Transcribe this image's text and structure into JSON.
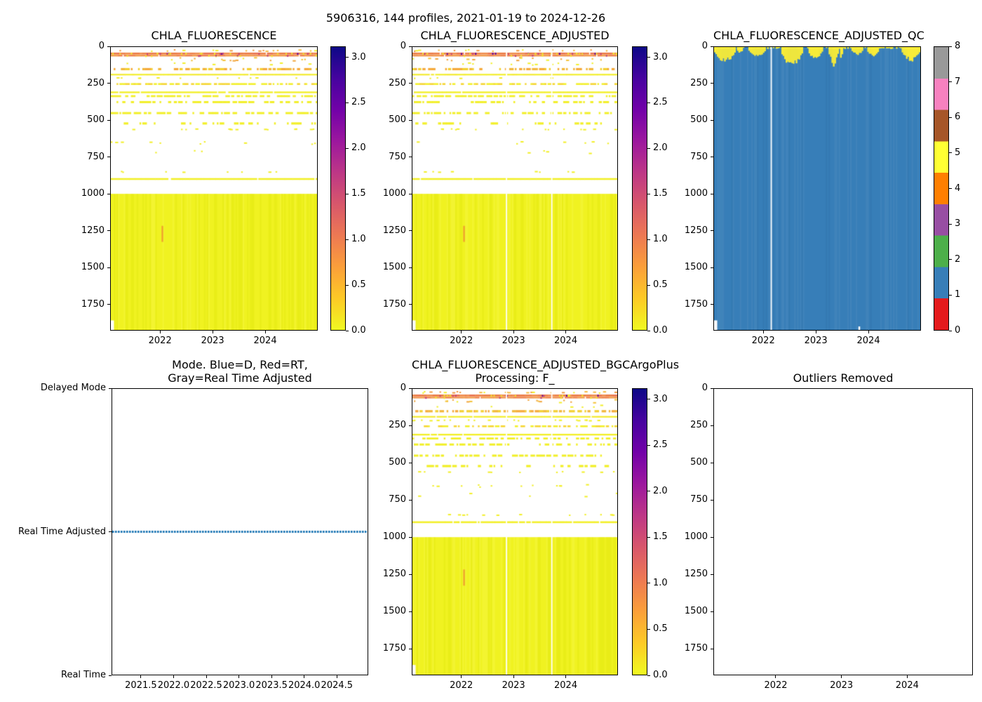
{
  "figure": {
    "suptitle": "5906316, 144 profiles, 2021-01-19 to 2024-12-26",
    "background": "#ffffff"
  },
  "palette": {
    "plasma_r_stops": [
      "#0d0887",
      "#46039f",
      "#7201a8",
      "#9c179e",
      "#bd3786",
      "#d8576b",
      "#ed7953",
      "#fb9f3a",
      "#fdca26",
      "#f0f921"
    ],
    "set1_bottom_to_top": [
      "#e41a1c",
      "#377eb8",
      "#4daf4a",
      "#984ea3",
      "#ff7f00",
      "#ffff33",
      "#a65628",
      "#f781bf",
      "#999999"
    ],
    "mode_line_blue": "#1f77b4",
    "qc_blue": "#377eb8",
    "qc_yellow": "#f8ec38",
    "deep_yellow": "#f0f221",
    "surface_orange": "#ee8048"
  },
  "chla_bands": [
    {
      "d0": 14,
      "d1": 34,
      "density": 0.1,
      "colors": [
        "#f6b93c",
        "#f09a40",
        "#f2ef2a"
      ]
    },
    {
      "d0": 38,
      "d1": 51,
      "density": 0.97,
      "colors": [
        "#ee8048",
        "#ec7a43",
        "#f08d4e",
        "#e9724d"
      ],
      "specks": [
        {
          "p": 0.035,
          "c": "#5601a4"
        },
        {
          "p": 0.05,
          "c": "#c2417f"
        },
        {
          "p": 0.09,
          "c": "#f2ef2a"
        }
      ]
    },
    {
      "d0": 53,
      "d1": 64,
      "density": 0.92,
      "colors": [
        "#f0914c",
        "#ee8048",
        "#f29a48"
      ],
      "specks": [
        {
          "p": 0.06,
          "c": "#f2ef2a"
        },
        {
          "p": 0.02,
          "c": "#b93a83"
        }
      ]
    },
    {
      "d0": 68,
      "d1": 100,
      "density": 0.11,
      "colors": [
        "#f4c238",
        "#f2ef2a",
        "#f2a63c"
      ]
    },
    {
      "d0": 104,
      "d1": 130,
      "density": 0.05,
      "colors": [
        "#f2ef2a"
      ]
    },
    {
      "d0": 143,
      "d1": 158,
      "density": 0.38,
      "colors": [
        "#f5a93a",
        "#f2b63a",
        "#f3cf30"
      ]
    },
    {
      "d0": 183,
      "d1": 193,
      "density": 0.93,
      "colors": [
        "#f2ef26",
        "#f3e928"
      ]
    },
    {
      "d0": 205,
      "d1": 220,
      "density": 0.1,
      "colors": [
        "#f2ef26"
      ]
    },
    {
      "d0": 246,
      "d1": 258,
      "density": 0.42,
      "colors": [
        "#f2ef26",
        "#f5d52e"
      ]
    },
    {
      "d0": 303,
      "d1": 314,
      "density": 0.92,
      "colors": [
        "#f2ef26"
      ]
    },
    {
      "d0": 328,
      "d1": 341,
      "density": 0.4,
      "colors": [
        "#f2ef26"
      ]
    },
    {
      "d0": 368,
      "d1": 382,
      "density": 0.3,
      "colors": [
        "#f2ef26"
      ]
    },
    {
      "d0": 443,
      "d1": 457,
      "density": 0.36,
      "colors": [
        "#f2ef26"
      ]
    },
    {
      "d0": 513,
      "d1": 528,
      "density": 0.2,
      "colors": [
        "#f2ef26"
      ]
    },
    {
      "d0": 553,
      "d1": 568,
      "density": 0.08,
      "colors": [
        "#f2ef26"
      ]
    },
    {
      "d0": 640,
      "d1": 668,
      "density": 0.05,
      "colors": [
        "#f2ef26"
      ]
    },
    {
      "d0": 700,
      "d1": 732,
      "density": 0.03,
      "colors": [
        "#f2ef26"
      ]
    },
    {
      "d0": 843,
      "d1": 858,
      "density": 0.05,
      "colors": [
        "#f2ef26"
      ]
    },
    {
      "d0": 893,
      "d1": 905,
      "density": 0.88,
      "colors": [
        "#f2ef26"
      ]
    },
    {
      "d0": 1000,
      "d1": 1927,
      "density": 1.0,
      "block": true,
      "colors": [
        "#f0f221"
      ]
    }
  ],
  "chart_data": [
    {
      "type": "heatmap",
      "axes": "ax0",
      "title": "CHLA_FLUORESCENCE",
      "x_range": [
        2021.05,
        2025.0
      ],
      "x_ticks": [
        {
          "v": 2022,
          "label": "2022"
        },
        {
          "v": 2023,
          "label": "2023"
        },
        {
          "v": 2024,
          "label": "2024"
        }
      ],
      "y_range": [
        0,
        1927
      ],
      "y_ticks": [
        {
          "v": 0,
          "label": "0"
        },
        {
          "v": 250,
          "label": "250"
        },
        {
          "v": 500,
          "label": "500"
        },
        {
          "v": 750,
          "label": "750"
        },
        {
          "v": 1000,
          "label": "1000"
        },
        {
          "v": 1250,
          "label": "1250"
        },
        {
          "v": 1500,
          "label": "1500"
        },
        {
          "v": 1750,
          "label": "1750"
        }
      ],
      "n_profiles": 144,
      "seed": 11,
      "bands": "chla_bands",
      "vertical_dash": {
        "x_frac": 0.25,
        "d0": 1218,
        "d1": 1327,
        "color": "#efa32e"
      },
      "white_gap_fracs": [],
      "bottom_left_notch": true,
      "colorbar": "cb0",
      "vmin": 0,
      "vmax": 3.12
    },
    {
      "type": "heatmap",
      "axes": "ax1",
      "title": "CHLA_FLUORESCENCE_ADJUSTED",
      "x_range": [
        2021.05,
        2025.0
      ],
      "x_ticks": [
        {
          "v": 2022,
          "label": "2022"
        },
        {
          "v": 2023,
          "label": "2023"
        },
        {
          "v": 2024,
          "label": "2024"
        }
      ],
      "y_range": [
        0,
        1927
      ],
      "y_ticks": [
        {
          "v": 0,
          "label": "0"
        },
        {
          "v": 250,
          "label": "250"
        },
        {
          "v": 500,
          "label": "500"
        },
        {
          "v": 750,
          "label": "750"
        },
        {
          "v": 1000,
          "label": "1000"
        },
        {
          "v": 1250,
          "label": "1250"
        },
        {
          "v": 1500,
          "label": "1500"
        },
        {
          "v": 1750,
          "label": "1750"
        }
      ],
      "n_profiles": 144,
      "seed": 12,
      "bands": "chla_bands",
      "vertical_dash": {
        "x_frac": 0.252,
        "d0": 1218,
        "d1": 1327,
        "color": "#efa32e"
      },
      "white_gap_fracs": [
        0.459,
        0.68
      ],
      "bottom_left_notch": true,
      "colorbar": "cb1",
      "vmin": 0,
      "vmax": 3.12
    },
    {
      "type": "heatmap_qc",
      "axes": "ax2",
      "title": "CHLA_FLUORESCENCE_ADJUSTED_QC",
      "x_range": [
        2021.05,
        2025.0
      ],
      "x_ticks": [
        {
          "v": 2022,
          "label": "2022"
        },
        {
          "v": 2023,
          "label": "2023"
        },
        {
          "v": 2024,
          "label": "2024"
        }
      ],
      "y_range": [
        0,
        1927
      ],
      "y_ticks": [
        {
          "v": 0,
          "label": "0"
        },
        {
          "v": 250,
          "label": "250"
        },
        {
          "v": 500,
          "label": "500"
        },
        {
          "v": 750,
          "label": "750"
        },
        {
          "v": 1000,
          "label": "1000"
        },
        {
          "v": 1250,
          "label": "1250"
        },
        {
          "v": 1500,
          "label": "1500"
        },
        {
          "v": 1750,
          "label": "1750"
        }
      ],
      "n_profiles": 144,
      "seed": 13,
      "background_qc_value": 1,
      "surface_qc_value": 5,
      "surface_clusters": [
        [
          0.0,
          0.105,
          30,
          110
        ],
        [
          0.11,
          0.14,
          15,
          45
        ],
        [
          0.17,
          0.25,
          25,
          70
        ],
        [
          0.325,
          0.43,
          35,
          140
        ],
        [
          0.455,
          0.525,
          30,
          95
        ],
        [
          0.555,
          0.605,
          25,
          135
        ],
        [
          0.61,
          0.625,
          20,
          90
        ],
        [
          0.665,
          0.725,
          18,
          55
        ],
        [
          0.74,
          0.8,
          25,
          65
        ],
        [
          0.91,
          1.0,
          30,
          105
        ]
      ],
      "white_gap_fracs": [
        0.277
      ],
      "bottom_left_notch": true,
      "bottom_white_dash_frac": 0.7,
      "colorbar": "cb2",
      "vmin": 0,
      "vmax": 8
    },
    {
      "type": "line_mode",
      "axes": "ax3",
      "title": "Mode. Blue=D, Red=RT,\nGray=Real Time Adjusted",
      "x_range": [
        2021.05,
        2024.98
      ],
      "x_ticks": [
        {
          "v": 2021.5,
          "label": "2021.5"
        },
        {
          "v": 2022.0,
          "label": "2022.0"
        },
        {
          "v": 2022.5,
          "label": "2022.5"
        },
        {
          "v": 2023.0,
          "label": "2023.0"
        },
        {
          "v": 2023.5,
          "label": "2023.5"
        },
        {
          "v": 2024.0,
          "label": "2024.0"
        },
        {
          "v": 2024.5,
          "label": "2024.5"
        }
      ],
      "y_categories": [
        "Real Time",
        "Real Time Adjusted",
        "Delayed Mode"
      ],
      "series": [
        {
          "name": "mode",
          "constant_value": "Real Time Adjusted",
          "color": "#1f77b4",
          "style": "dense-dashed"
        }
      ]
    },
    {
      "type": "heatmap",
      "axes": "ax4",
      "title": "CHLA_FLUORESCENCE_ADJUSTED_BGCArgoPlus\nProcessing: F_",
      "x_range": [
        2021.05,
        2025.0
      ],
      "x_ticks": [
        {
          "v": 2022,
          "label": "2022"
        },
        {
          "v": 2023,
          "label": "2023"
        },
        {
          "v": 2024,
          "label": "2024"
        }
      ],
      "y_range": [
        0,
        1927
      ],
      "y_ticks": [
        {
          "v": 0,
          "label": "0"
        },
        {
          "v": 250,
          "label": "250"
        },
        {
          "v": 500,
          "label": "500"
        },
        {
          "v": 750,
          "label": "750"
        },
        {
          "v": 1000,
          "label": "1000"
        },
        {
          "v": 1250,
          "label": "1250"
        },
        {
          "v": 1500,
          "label": "1500"
        },
        {
          "v": 1750,
          "label": "1750"
        }
      ],
      "n_profiles": 144,
      "seed": 14,
      "bands": "chla_bands",
      "vertical_dash": {
        "x_frac": 0.252,
        "d0": 1218,
        "d1": 1327,
        "color": "#efa32e"
      },
      "white_gap_fracs": [
        0.459,
        0.68
      ],
      "bottom_left_notch": true,
      "colorbar": "cb3",
      "vmin": 0,
      "vmax": 3.12
    },
    {
      "type": "empty",
      "axes": "ax5",
      "title": "Outliers Removed",
      "x_range": [
        2021.05,
        2025.0
      ],
      "x_ticks": [
        {
          "v": 2022,
          "label": "2022"
        },
        {
          "v": 2023,
          "label": "2023"
        },
        {
          "v": 2024,
          "label": "2024"
        }
      ],
      "y_range": [
        0,
        1927
      ],
      "y_ticks": [
        {
          "v": 0,
          "label": "0"
        },
        {
          "v": 250,
          "label": "250"
        },
        {
          "v": 500,
          "label": "500"
        },
        {
          "v": 750,
          "label": "750"
        },
        {
          "v": 1000,
          "label": "1000"
        },
        {
          "v": 1250,
          "label": "1250"
        },
        {
          "v": 1500,
          "label": "1500"
        },
        {
          "v": 1750,
          "label": "1750"
        }
      ]
    }
  ],
  "colorbars": [
    {
      "id": "cb0",
      "kind": "plasma_r",
      "vmin": 0,
      "vmax": 3.12,
      "ticks": [
        {
          "v": 3.0,
          "label": "3.0"
        },
        {
          "v": 2.5,
          "label": "2.5"
        },
        {
          "v": 2.0,
          "label": "2.0"
        },
        {
          "v": 1.5,
          "label": "1.5"
        },
        {
          "v": 1.0,
          "label": "1.0"
        },
        {
          "v": 0.5,
          "label": "0.5"
        },
        {
          "v": 0.0,
          "label": "0.0"
        }
      ]
    },
    {
      "id": "cb1",
      "kind": "plasma_r",
      "vmin": 0,
      "vmax": 3.12,
      "ticks": [
        {
          "v": 3.0,
          "label": "3.0"
        },
        {
          "v": 2.5,
          "label": "2.5"
        },
        {
          "v": 2.0,
          "label": "2.0"
        },
        {
          "v": 1.5,
          "label": "1.5"
        },
        {
          "v": 1.0,
          "label": "1.0"
        },
        {
          "v": 0.5,
          "label": "0.5"
        },
        {
          "v": 0.0,
          "label": "0.0"
        }
      ]
    },
    {
      "id": "cb2",
      "kind": "set1",
      "vmin": 0,
      "vmax": 8,
      "ticks": [
        {
          "v": 8,
          "label": "8"
        },
        {
          "v": 7,
          "label": "7"
        },
        {
          "v": 6,
          "label": "6"
        },
        {
          "v": 5,
          "label": "5"
        },
        {
          "v": 4,
          "label": "4"
        },
        {
          "v": 3,
          "label": "3"
        },
        {
          "v": 2,
          "label": "2"
        },
        {
          "v": 1,
          "label": "1"
        },
        {
          "v": 0,
          "label": "0"
        }
      ]
    },
    {
      "id": "cb3",
      "kind": "plasma_r",
      "vmin": 0,
      "vmax": 3.12,
      "ticks": [
        {
          "v": 3.0,
          "label": "3.0"
        },
        {
          "v": 2.5,
          "label": "2.5"
        },
        {
          "v": 2.0,
          "label": "2.0"
        },
        {
          "v": 1.5,
          "label": "1.5"
        },
        {
          "v": 1.0,
          "label": "1.0"
        },
        {
          "v": 0.5,
          "label": "0.5"
        },
        {
          "v": 0.0,
          "label": "0.0"
        }
      ]
    }
  ]
}
